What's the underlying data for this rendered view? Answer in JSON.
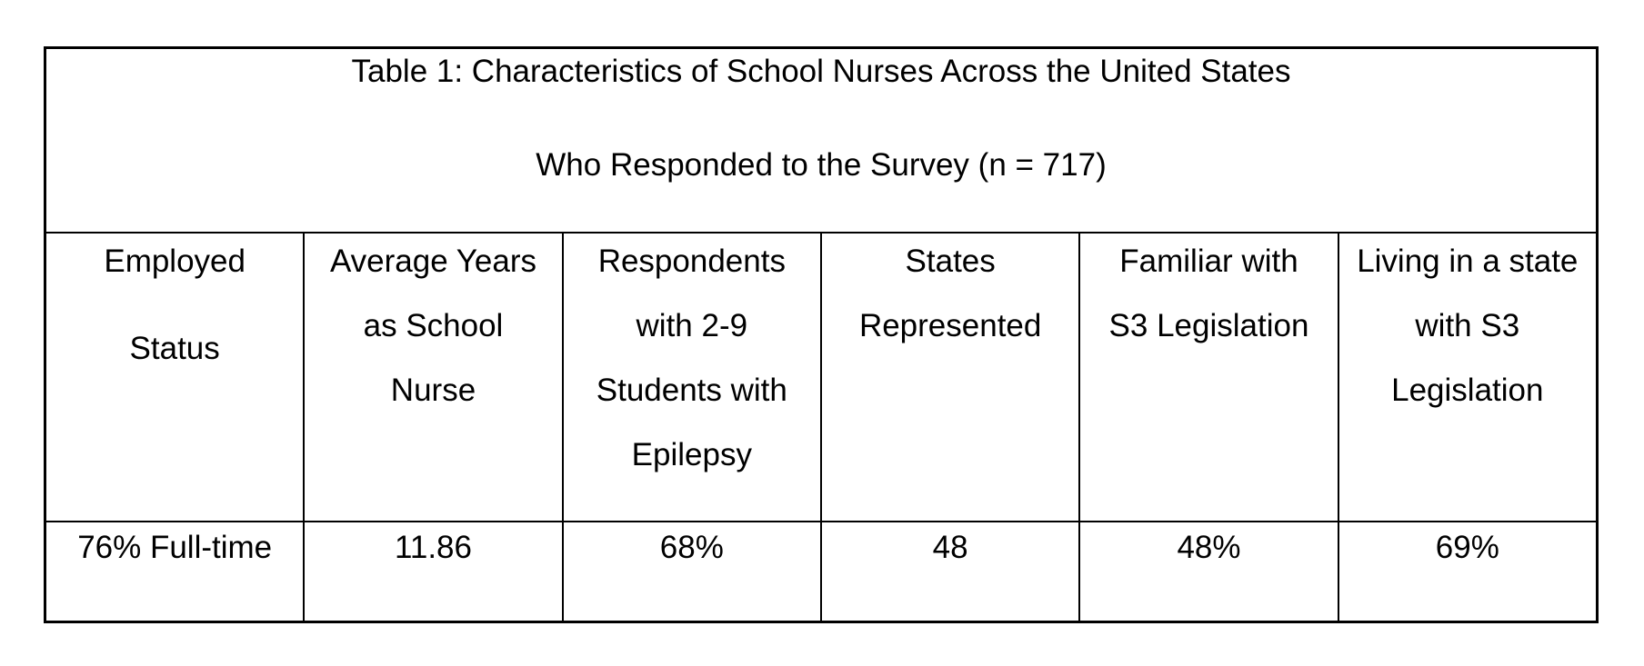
{
  "table": {
    "title_lines": [
      "Table 1: Characteristics of School Nurses Across the United States",
      "Who Responded to the Survey (n = 717)"
    ],
    "columns": [
      {
        "header": "Employed Status",
        "header_lines": [
          "Employed",
          "Status"
        ],
        "value": "76% Full-time"
      },
      {
        "header": "Average Years as School Nurse",
        "header_lines": [
          "Average Years",
          "as School",
          "Nurse"
        ],
        "value": "11.86"
      },
      {
        "header": "Respondents with 2-9 Students with Epilepsy",
        "header_lines": [
          "Respondents",
          "with 2-9",
          "Students with",
          "Epilepsy"
        ],
        "value": "68%"
      },
      {
        "header": "States Represented",
        "header_lines": [
          "States",
          "Represented"
        ],
        "value": "48"
      },
      {
        "header": "Familiar with S3 Legislation",
        "header_lines": [
          "Familiar with",
          "S3 Legislation"
        ],
        "value": "48%"
      },
      {
        "header": "Living in a state with S3 Legislation",
        "header_lines": [
          "Living in a state",
          "with S3",
          "Legislation"
        ],
        "value": "69%"
      }
    ],
    "colors": {
      "border": "#000000",
      "text": "#000000",
      "background": "#ffffff"
    }
  }
}
